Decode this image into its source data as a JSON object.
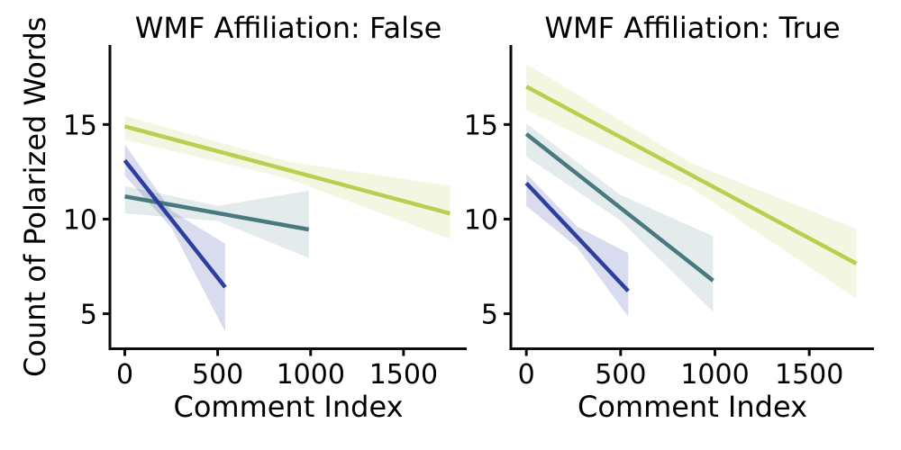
{
  "figure_title": "",
  "colors": {
    "blue_line": "#2d3e9e",
    "teal_line": "#48797f",
    "green_line": "#b6d04f",
    "blue_band": "rgba(45,62,158,0.18)",
    "teal_band": "rgba(72,121,127,0.15)",
    "green_band": "rgba(182,208,78,0.17)",
    "axis": "#0a0a0a",
    "text": "#000000"
  },
  "chart_data": [
    {
      "type": "line",
      "title": "WMF Affiliation: False",
      "xlabel": "Comment Index",
      "ylabel": "Count of Polarized Words",
      "xlim": [
        -80,
        1840
      ],
      "ylim": [
        3.15,
        19.2
      ],
      "xticks": [
        0,
        500,
        1000,
        1500
      ],
      "yticks": [
        5,
        10,
        15
      ],
      "grid": false,
      "legend": "none",
      "series": [
        {
          "name": "green",
          "color_key": "green_line",
          "band_key": "green_band",
          "x": [
            0,
            1750
          ],
          "y": [
            14.9,
            10.3
          ],
          "band": {
            "x": [
              0,
              875,
              1750
            ],
            "top": [
              15.45,
              13.05,
              11.75
            ],
            "bottom": [
              14.2,
              12.15,
              8.95
            ]
          }
        },
        {
          "name": "teal",
          "color_key": "teal_line",
          "band_key": "teal_band",
          "x": [
            0,
            990
          ],
          "y": [
            11.2,
            9.45
          ],
          "band": {
            "x": [
              0,
              500,
              990
            ],
            "top": [
              11.75,
              10.7,
              11.5
            ],
            "bottom": [
              10.3,
              9.9,
              7.95
            ]
          }
        },
        {
          "name": "blue",
          "color_key": "blue_line",
          "band_key": "blue_band",
          "x": [
            0,
            540
          ],
          "y": [
            13.1,
            6.4
          ],
          "band": {
            "x": [
              0,
              250,
              540
            ],
            "top": [
              13.95,
              10.45,
              8.7
            ],
            "bottom": [
              12.3,
              9.55,
              4.05
            ]
          }
        }
      ]
    },
    {
      "type": "line",
      "title": "WMF Affiliation: True",
      "xlabel": "Comment Index",
      "ylabel": "",
      "xlim": [
        -82,
        1843
      ],
      "ylim": [
        3.15,
        19.2
      ],
      "xticks": [
        0,
        500,
        1000,
        1500
      ],
      "yticks": [
        5,
        10,
        15
      ],
      "grid": false,
      "legend": "none",
      "series": [
        {
          "name": "green",
          "color_key": "green_line",
          "band_key": "green_band",
          "x": [
            0,
            1750
          ],
          "y": [
            17.0,
            7.65
          ],
          "band": {
            "x": [
              0,
              875,
              1750
            ],
            "top": [
              18.2,
              12.95,
              9.5
            ],
            "bottom": [
              15.75,
              11.65,
              5.8
            ]
          }
        },
        {
          "name": "teal",
          "color_key": "teal_line",
          "band_key": "teal_band",
          "x": [
            0,
            990
          ],
          "y": [
            14.5,
            6.75
          ],
          "band": {
            "x": [
              0,
              495,
              990
            ],
            "top": [
              15.05,
              11.3,
              9.1
            ],
            "bottom": [
              13.3,
              9.95,
              5.1
            ]
          }
        },
        {
          "name": "blue",
          "color_key": "blue_line",
          "band_key": "blue_band",
          "x": [
            0,
            540
          ],
          "y": [
            11.9,
            6.2
          ],
          "band": {
            "x": [
              0,
              270,
              540
            ],
            "top": [
              12.4,
              9.6,
              8.2
            ],
            "bottom": [
              10.7,
              8.5,
              4.85
            ]
          }
        }
      ]
    }
  ]
}
